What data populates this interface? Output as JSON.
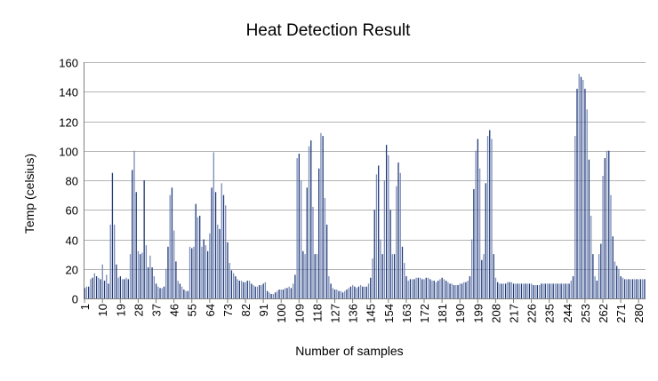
{
  "chart_data": {
    "type": "bar",
    "title": "Heat Detection Result",
    "xlabel": "Number of samples",
    "ylabel": "Temp (celsius)",
    "ylim": [
      0,
      160
    ],
    "yticks": [
      0,
      20,
      40,
      60,
      80,
      100,
      120,
      140,
      160
    ],
    "xtick_labels": [
      "1",
      "10",
      "19",
      "28",
      "37",
      "46",
      "55",
      "64",
      "73",
      "82",
      "91",
      "100",
      "109",
      "118",
      "127",
      "136",
      "145",
      "154",
      "163",
      "172",
      "181",
      "190",
      "199",
      "208",
      "217",
      "226",
      "235",
      "244",
      "253",
      "262",
      "271",
      "280"
    ],
    "grid": "horizontal",
    "colors": {
      "bar_dark": "#1f3a7a",
      "bar_light": "#7b8bb8",
      "grid": "#b3b3b3",
      "axis": "#808080"
    },
    "categories_range": [
      1,
      283
    ],
    "values": [
      7,
      8,
      8,
      13,
      14,
      17,
      15,
      14,
      13,
      23,
      12,
      16,
      10,
      50,
      85,
      50,
      23,
      14,
      15,
      13,
      13,
      14,
      13,
      30,
      87,
      100,
      72,
      32,
      30,
      31,
      80,
      36,
      21,
      29,
      21,
      15,
      10,
      8,
      7,
      7,
      8,
      20,
      35,
      70,
      75,
      46,
      25,
      12,
      10,
      8,
      6,
      5,
      5,
      35,
      34,
      35,
      64,
      55,
      56,
      35,
      40,
      36,
      32,
      44,
      75,
      99,
      72,
      50,
      47,
      78,
      70,
      63,
      38,
      24,
      19,
      17,
      15,
      13,
      12,
      12,
      11,
      11,
      12,
      12,
      10,
      9,
      8,
      8,
      9,
      9,
      10,
      11,
      5,
      4,
      3,
      3,
      4,
      5,
      6,
      6,
      6,
      7,
      7,
      8,
      7,
      10,
      16,
      95,
      98,
      80,
      32,
      30,
      75,
      103,
      107,
      62,
      30,
      30,
      88,
      112,
      110,
      68,
      50,
      15,
      10,
      7,
      6,
      6,
      5,
      5,
      4,
      5,
      6,
      7,
      8,
      9,
      8,
      7,
      8,
      9,
      8,
      8,
      8,
      10,
      14,
      27,
      60,
      84,
      90,
      40,
      30,
      80,
      104,
      97,
      60,
      30,
      30,
      76,
      92,
      85,
      35,
      24,
      15,
      12,
      13,
      13,
      13,
      14,
      14,
      14,
      13,
      13,
      14,
      14,
      13,
      12,
      12,
      11,
      12,
      13,
      14,
      13,
      12,
      11,
      10,
      10,
      9,
      9,
      9,
      10,
      10,
      11,
      11,
      12,
      15,
      40,
      74,
      100,
      108,
      88,
      26,
      30,
      78,
      110,
      114,
      108,
      30,
      14,
      11,
      10,
      10,
      10,
      10,
      11,
      11,
      11,
      10,
      10,
      10,
      10,
      10,
      10,
      10,
      10,
      10,
      10,
      9,
      9,
      9,
      9,
      10,
      10,
      10,
      10,
      10,
      10,
      10,
      10,
      10,
      10,
      10,
      10,
      10,
      10,
      10,
      12,
      15,
      110,
      142,
      152,
      150,
      148,
      142,
      128,
      94,
      56,
      30,
      15,
      12,
      30,
      37,
      83,
      95,
      100,
      100,
      70,
      42,
      25,
      22,
      20,
      15,
      14,
      13,
      13,
      13,
      13,
      13,
      13,
      13,
      13,
      13,
      13,
      13
    ]
  }
}
